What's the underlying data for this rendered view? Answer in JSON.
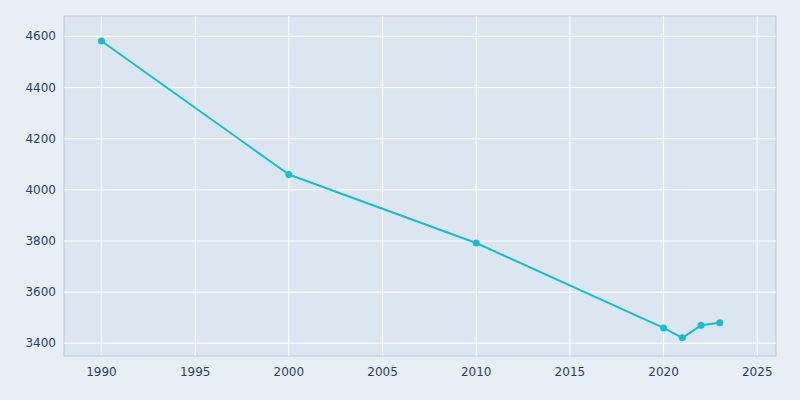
{
  "chart_data": {
    "type": "line",
    "x": [
      1990,
      2000,
      2010,
      2020,
      2021,
      2022,
      2023
    ],
    "values": [
      4582,
      4060,
      3792,
      3460,
      3421,
      3470,
      3480
    ],
    "color": "#17becf",
    "marker": "circle",
    "xlim": [
      1988,
      2026
    ],
    "ylim": [
      3350,
      4680
    ],
    "xticks": [
      1990,
      1995,
      2000,
      2005,
      2010,
      2015,
      2020,
      2025
    ],
    "yticks": [
      3400,
      3600,
      3800,
      4000,
      4200,
      4400,
      4600
    ],
    "grid": true
  }
}
